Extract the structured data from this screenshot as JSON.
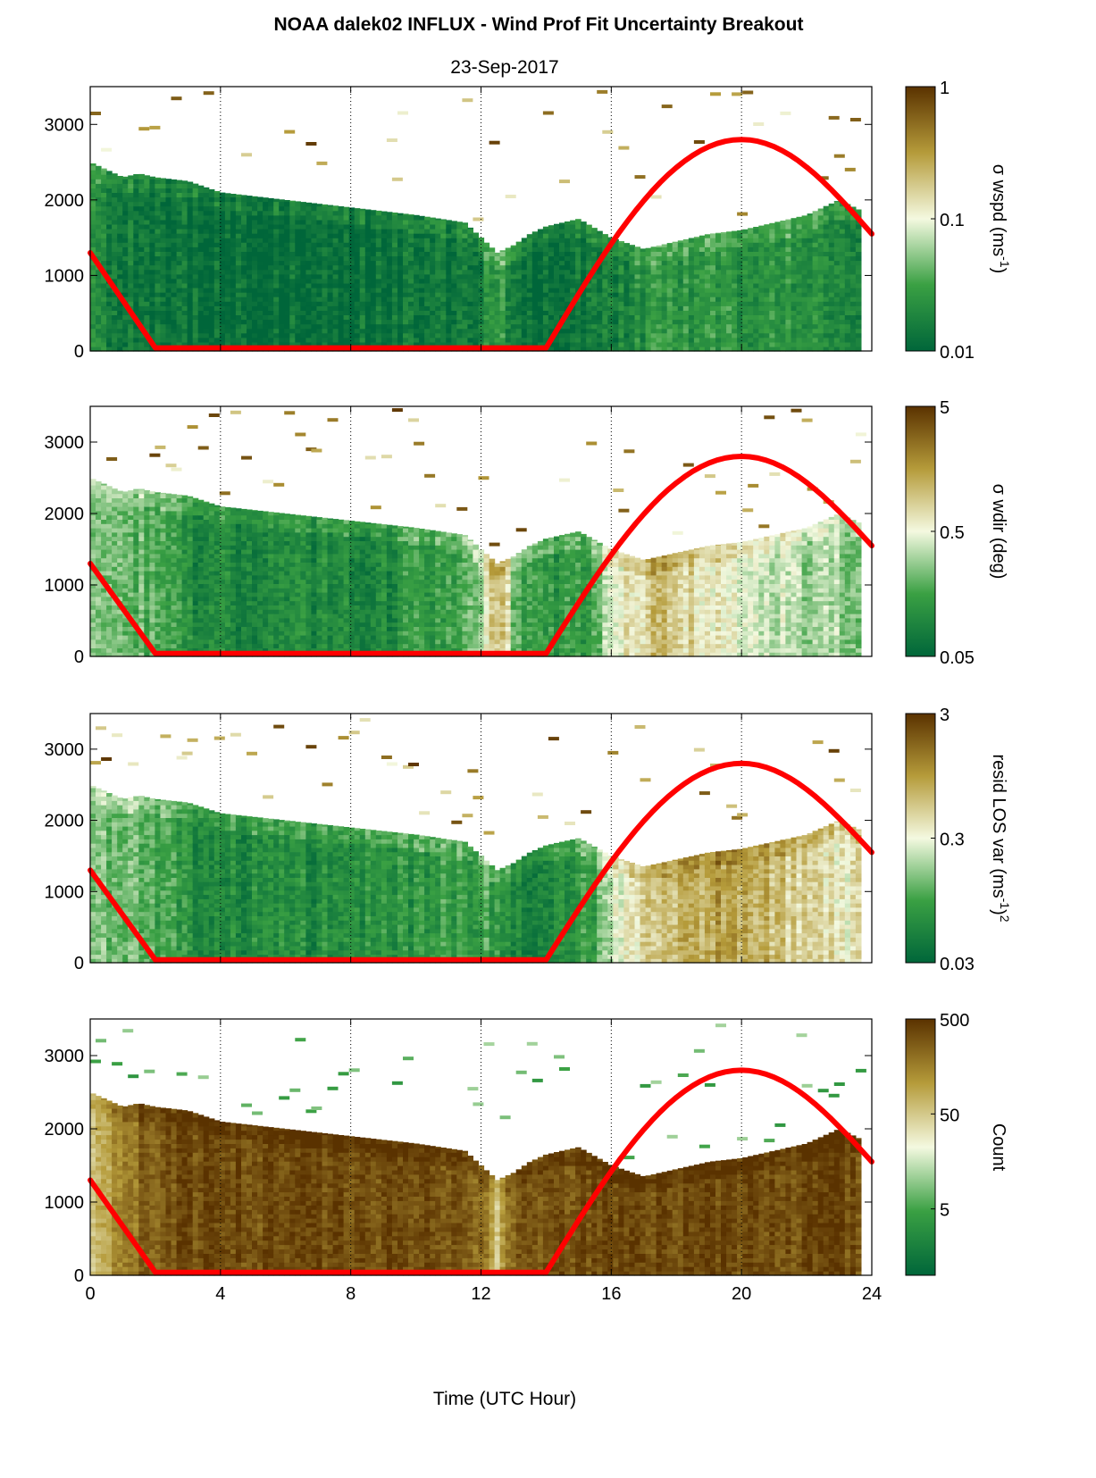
{
  "figure": {
    "title": "NOAA dalek02 INFLUX - Wind Prof Fit Uncertainty Breakout",
    "subtitle": "23-Sep-2017",
    "xlabel": "Time (UTC Hour)",
    "x_ticks": [
      "0",
      "4",
      "8",
      "12",
      "16",
      "20",
      "24"
    ],
    "y_ticks": [
      "0",
      "1000",
      "2000",
      "3000"
    ],
    "colors": {
      "line": "#ff0000",
      "low": "#00663a",
      "mid": "#f4f9e0",
      "high": "#5a3200",
      "background": "#ffffff"
    },
    "colorbars": [
      {
        "label": "σ wspd (ms",
        "label_sup": "-1",
        "label_post": ")",
        "ticks": [
          "1",
          "0.1",
          "0.01"
        ]
      },
      {
        "label": "σ wdir (deg)",
        "label_sup": "",
        "label_post": "",
        "ticks": [
          "5",
          "0.5",
          "0.05"
        ]
      },
      {
        "label": "resid LOS var (ms",
        "label_sup": "-1",
        "label_post": ")",
        "label_sup2": "2",
        "ticks": [
          "3",
          "0.3",
          "0.03"
        ]
      },
      {
        "label": "Count",
        "label_sup": "",
        "label_post": "",
        "ticks": [
          "500",
          "50",
          "5"
        ]
      }
    ]
  },
  "chart_data": [
    {
      "type": "heatmap",
      "variable": "σ wspd",
      "scale": "log",
      "clim": [
        0.01,
        1
      ],
      "xlim": [
        0,
        24
      ],
      "ylim": [
        0,
        3500
      ],
      "x_gridlines": [
        4,
        8,
        12,
        16,
        20
      ],
      "top_profile": {
        "x": [
          0,
          1,
          1.5,
          2,
          3,
          4,
          6,
          8,
          10,
          11.5,
          12,
          12.5,
          13,
          13.5,
          14,
          15,
          16,
          17,
          18,
          19,
          20,
          21,
          22,
          22.5,
          23,
          23.7
        ],
        "y": [
          2500,
          2300,
          2350,
          2300,
          2250,
          2100,
          2000,
          1900,
          1800,
          1700,
          1500,
          1300,
          1400,
          1550,
          1650,
          1750,
          1500,
          1350,
          1450,
          1550,
          1600,
          1700,
          1800,
          1900,
          2000,
          1850
        ]
      },
      "column_level": {
        "x": [
          0,
          2,
          4,
          8,
          11,
          12,
          12.5,
          13,
          14,
          15.5,
          16.5,
          18,
          20,
          22,
          24
        ],
        "v": [
          0.02,
          0.013,
          0.012,
          0.012,
          0.013,
          0.015,
          0.03,
          0.015,
          0.012,
          0.013,
          0.02,
          0.025,
          0.025,
          0.022,
          0.02
        ]
      },
      "line": {
        "name": "",
        "x": [
          0,
          2,
          14,
          20,
          24
        ],
        "y": [
          1300,
          40,
          40,
          2800,
          1550
        ]
      }
    },
    {
      "type": "heatmap",
      "variable": "σ wdir",
      "scale": "log",
      "clim": [
        0.05,
        5
      ],
      "xlim": [
        0,
        24
      ],
      "ylim": [
        0,
        3500
      ],
      "x_gridlines": [
        4,
        8,
        12,
        16,
        20
      ],
      "top_profile": {
        "x": [
          0,
          1,
          1.5,
          2,
          3,
          4,
          6,
          8,
          10,
          11.5,
          12,
          12.5,
          13,
          13.5,
          14,
          15,
          16,
          17,
          18,
          19,
          20,
          21,
          22,
          22.5,
          23,
          23.7
        ],
        "y": [
          2500,
          2300,
          2350,
          2300,
          2250,
          2100,
          2000,
          1900,
          1800,
          1700,
          1500,
          1300,
          1400,
          1550,
          1650,
          1750,
          1500,
          1350,
          1450,
          1550,
          1600,
          1700,
          1800,
          1900,
          2000,
          1850
        ]
      },
      "column_level": {
        "x": [
          0,
          1.5,
          3,
          6,
          9,
          11,
          12,
          12.6,
          13,
          14,
          15.5,
          16.5,
          17.5,
          19,
          20,
          22,
          24
        ],
        "v": [
          0.3,
          0.2,
          0.1,
          0.09,
          0.1,
          0.15,
          0.3,
          1.2,
          0.2,
          0.12,
          0.15,
          0.6,
          1.0,
          0.6,
          0.45,
          0.3,
          0.3
        ]
      },
      "line": {
        "name": "",
        "x": [
          0,
          2,
          14,
          20,
          24
        ],
        "y": [
          1300,
          40,
          40,
          2800,
          1550
        ]
      }
    },
    {
      "type": "heatmap",
      "variable": "resid LOS var",
      "scale": "log",
      "clim": [
        0.03,
        3
      ],
      "xlim": [
        0,
        24
      ],
      "ylim": [
        0,
        3500
      ],
      "x_gridlines": [
        4,
        8,
        12,
        16,
        20
      ],
      "top_profile": {
        "x": [
          0,
          1,
          1.5,
          2,
          3,
          4,
          6,
          8,
          10,
          11.5,
          12,
          12.5,
          13,
          13.5,
          14,
          15,
          16,
          17,
          18,
          19,
          20,
          21,
          22,
          22.5,
          23,
          23.7
        ],
        "y": [
          2500,
          2300,
          2350,
          2300,
          2250,
          2100,
          2000,
          1900,
          1800,
          1700,
          1500,
          1300,
          1400,
          1550,
          1650,
          1750,
          1500,
          1350,
          1450,
          1550,
          1600,
          1700,
          1800,
          1900,
          2000,
          1850
        ]
      },
      "column_level": {
        "x": [
          0,
          1.5,
          3,
          6,
          9,
          11,
          12,
          13,
          14,
          15.5,
          16.5,
          18,
          19.5,
          21,
          22.5,
          24
        ],
        "v": [
          0.15,
          0.12,
          0.07,
          0.06,
          0.07,
          0.08,
          0.1,
          0.06,
          0.06,
          0.1,
          0.4,
          0.6,
          0.9,
          0.6,
          0.4,
          0.35
        ]
      },
      "line": {
        "name": "",
        "x": [
          0,
          2,
          14,
          20,
          24
        ],
        "y": [
          1300,
          40,
          40,
          2800,
          1550
        ]
      }
    },
    {
      "type": "heatmap",
      "variable": "Count",
      "scale": "log",
      "clim": [
        1,
        500
      ],
      "xlim": [
        0,
        24
      ],
      "ylim": [
        0,
        3500
      ],
      "x_gridlines": [
        4,
        8,
        12,
        16,
        20
      ],
      "top_profile": {
        "x": [
          0,
          1,
          1.5,
          2,
          3,
          4,
          6,
          8,
          10,
          11.5,
          12,
          12.5,
          13,
          13.5,
          14,
          15,
          16,
          17,
          18,
          19,
          20,
          21,
          22,
          22.5,
          23,
          23.7
        ],
        "y": [
          2500,
          2300,
          2350,
          2300,
          2250,
          2100,
          2000,
          1900,
          1800,
          1700,
          1500,
          1300,
          1400,
          1550,
          1650,
          1750,
          1500,
          1350,
          1450,
          1550,
          1600,
          1700,
          1800,
          1900,
          2000,
          1850
        ]
      },
      "column_level": {
        "x": [
          0,
          1,
          2,
          4,
          8,
          11,
          12,
          12.5,
          13,
          14,
          16,
          20,
          24
        ],
        "v": [
          40,
          150,
          300,
          350,
          350,
          300,
          250,
          60,
          250,
          350,
          350,
          350,
          350
        ]
      },
      "line": {
        "name": "",
        "x": [
          0,
          2,
          14,
          20,
          24
        ],
        "y": [
          1300,
          40,
          40,
          2800,
          1550
        ]
      }
    }
  ]
}
